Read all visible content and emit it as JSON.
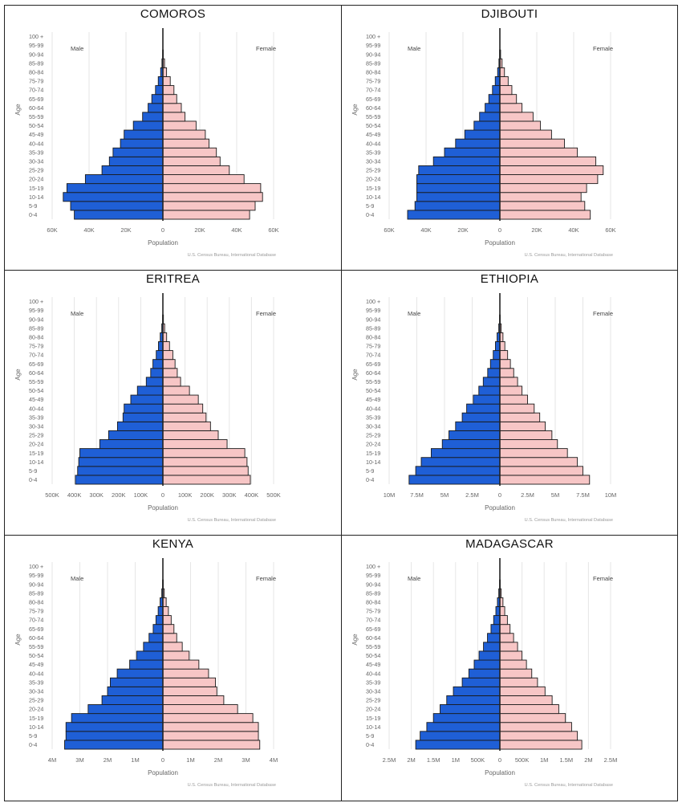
{
  "meta": {
    "age_groups": [
      "0-4",
      "5-9",
      "10-14",
      "15-19",
      "20-24",
      "25-29",
      "30-34",
      "35-39",
      "40-44",
      "45-49",
      "50-54",
      "55-59",
      "60-64",
      "65-69",
      "70-74",
      "75-79",
      "80-84",
      "85-89",
      "90-94",
      "95-99",
      "100 +"
    ],
    "y_axis_label": "Age",
    "x_axis_label": "Population",
    "male_label": "Male",
    "female_label": "Female",
    "source_credit": "U.S. Census Bureau, International Database",
    "colors": {
      "male": "#1f5fd6",
      "female": "#f7c6c6",
      "outline": "#1a1a1a",
      "grid": "#e6e6e6",
      "axis_text": "#666666"
    }
  },
  "chart_data": [
    {
      "type": "bar",
      "title": "COMOROS",
      "xlabel": "Population",
      "ylabel": "Age",
      "xlim": [
        -60000,
        60000
      ],
      "tick_values": [
        -60000,
        -40000,
        -20000,
        0,
        20000,
        40000,
        60000
      ],
      "tick_labels": [
        "60K",
        "40K",
        "20K",
        "0",
        "20K",
        "40K",
        "60K"
      ],
      "categories": [
        "0-4",
        "5-9",
        "10-14",
        "15-19",
        "20-24",
        "25-29",
        "30-34",
        "35-39",
        "40-44",
        "45-49",
        "50-54",
        "55-59",
        "60-64",
        "65-69",
        "70-74",
        "75-79",
        "80-84",
        "85-89",
        "90-94",
        "95-99",
        "100 +"
      ],
      "series": [
        {
          "name": "Male",
          "values": [
            48000,
            50000,
            54000,
            52000,
            42000,
            33000,
            29000,
            27000,
            23000,
            21000,
            16000,
            11000,
            8000,
            6000,
            4000,
            2500,
            1200,
            500,
            150,
            40,
            5
          ]
        },
        {
          "name": "Female",
          "values": [
            47000,
            50000,
            54000,
            53000,
            44000,
            36000,
            31000,
            29000,
            25000,
            23000,
            18000,
            12000,
            10000,
            7500,
            6000,
            4000,
            2000,
            900,
            250,
            60,
            10
          ]
        }
      ]
    },
    {
      "type": "bar",
      "title": "DJIBOUTI",
      "xlabel": "Population",
      "ylabel": "Age",
      "xlim": [
        -60000,
        60000
      ],
      "tick_values": [
        -60000,
        -40000,
        -20000,
        0,
        20000,
        40000,
        60000
      ],
      "tick_labels": [
        "60K",
        "40K",
        "20K",
        "0",
        "20K",
        "40K",
        "60K"
      ],
      "categories": [
        "0-4",
        "5-9",
        "10-14",
        "15-19",
        "20-24",
        "25-29",
        "30-34",
        "35-39",
        "40-44",
        "45-49",
        "50-54",
        "55-59",
        "60-64",
        "65-69",
        "70-74",
        "75-79",
        "80-84",
        "85-89",
        "90-94",
        "95-99",
        "100 +"
      ],
      "series": [
        {
          "name": "Male",
          "values": [
            50000,
            46000,
            45000,
            45000,
            45000,
            44000,
            36000,
            30000,
            24000,
            19000,
            14000,
            11000,
            8000,
            6000,
            4000,
            2500,
            1200,
            500,
            150,
            40,
            5
          ]
        },
        {
          "name": "Female",
          "values": [
            49000,
            46000,
            44000,
            47000,
            53000,
            56000,
            52000,
            42000,
            35000,
            28000,
            22000,
            18000,
            12000,
            9000,
            6500,
            4500,
            2500,
            1200,
            400,
            80,
            10
          ]
        }
      ]
    },
    {
      "type": "bar",
      "title": "ERITREA",
      "xlabel": "Population",
      "ylabel": "Age",
      "xlim": [
        -500000,
        500000
      ],
      "tick_values": [
        -500000,
        -400000,
        -300000,
        -200000,
        -100000,
        0,
        100000,
        200000,
        300000,
        400000,
        500000
      ],
      "tick_labels": [
        "500K",
        "400K",
        "300K",
        "200K",
        "100K",
        "0",
        "100K",
        "200K",
        "300K",
        "400K",
        "500K"
      ],
      "categories": [
        "0-4",
        "5-9",
        "10-14",
        "15-19",
        "20-24",
        "25-29",
        "30-34",
        "35-39",
        "40-44",
        "45-49",
        "50-54",
        "55-59",
        "60-64",
        "65-69",
        "70-74",
        "75-79",
        "80-84",
        "85-89",
        "90-94",
        "95-99",
        "100 +"
      ],
      "series": [
        {
          "name": "Male",
          "values": [
            395000,
            385000,
            380000,
            375000,
            285000,
            245000,
            205000,
            180000,
            175000,
            145000,
            115000,
            75000,
            55000,
            45000,
            30000,
            20000,
            12000,
            5000,
            1500,
            300,
            50
          ]
        },
        {
          "name": "Female",
          "values": [
            395000,
            385000,
            380000,
            370000,
            290000,
            250000,
            215000,
            195000,
            180000,
            160000,
            120000,
            80000,
            65000,
            55000,
            45000,
            30000,
            17000,
            8000,
            2500,
            500,
            80
          ]
        }
      ]
    },
    {
      "type": "bar",
      "title": "ETHIOPIA",
      "xlabel": "Population",
      "ylabel": "Age",
      "xlim": [
        -10000000,
        10000000
      ],
      "tick_values": [
        -10000000,
        -7500000,
        -5000000,
        -2500000,
        0,
        2500000,
        5000000,
        7500000,
        10000000
      ],
      "tick_labels": [
        "10M",
        "7.5M",
        "5M",
        "2.5M",
        "0",
        "2.5M",
        "5M",
        "7.5M",
        "10M"
      ],
      "categories": [
        "0-4",
        "5-9",
        "10-14",
        "15-19",
        "20-24",
        "25-29",
        "30-34",
        "35-39",
        "40-44",
        "45-49",
        "50-54",
        "55-59",
        "60-64",
        "65-69",
        "70-74",
        "75-79",
        "80-84",
        "85-89",
        "90-94",
        "95-99",
        "100 +"
      ],
      "series": [
        {
          "name": "Male",
          "values": [
            8200000,
            7600000,
            7100000,
            6200000,
            5200000,
            4600000,
            4000000,
            3400000,
            3000000,
            2400000,
            1900000,
            1500000,
            1100000,
            850000,
            600000,
            400000,
            250000,
            100000,
            30000,
            6000,
            800
          ]
        },
        {
          "name": "Female",
          "values": [
            8100000,
            7500000,
            7000000,
            6100000,
            5200000,
            4700000,
            4100000,
            3600000,
            3100000,
            2500000,
            2000000,
            1600000,
            1250000,
            950000,
            700000,
            450000,
            280000,
            120000,
            35000,
            7000,
            1000
          ]
        }
      ]
    },
    {
      "type": "bar",
      "title": "KENYA",
      "xlabel": "Population",
      "ylabel": "Age",
      "xlim": [
        -4000000,
        4000000
      ],
      "tick_values": [
        -4000000,
        -3000000,
        -2000000,
        -1000000,
        0,
        1000000,
        2000000,
        3000000,
        4000000
      ],
      "tick_labels": [
        "4M",
        "3M",
        "2M",
        "1M",
        "0",
        "1M",
        "2M",
        "3M",
        "4M"
      ],
      "categories": [
        "0-4",
        "5-9",
        "10-14",
        "15-19",
        "20-24",
        "25-29",
        "30-34",
        "35-39",
        "40-44",
        "45-49",
        "50-54",
        "55-59",
        "60-64",
        "65-69",
        "70-74",
        "75-79",
        "80-84",
        "85-89",
        "90-94",
        "95-99",
        "100 +"
      ],
      "series": [
        {
          "name": "Male",
          "values": [
            3550000,
            3500000,
            3500000,
            3300000,
            2700000,
            2200000,
            2000000,
            1900000,
            1650000,
            1200000,
            950000,
            700000,
            500000,
            350000,
            250000,
            170000,
            100000,
            40000,
            12000,
            3000,
            300
          ]
        },
        {
          "name": "Female",
          "values": [
            3500000,
            3450000,
            3450000,
            3250000,
            2700000,
            2200000,
            1950000,
            1900000,
            1650000,
            1300000,
            950000,
            700000,
            500000,
            400000,
            300000,
            200000,
            120000,
            50000,
            15000,
            3500,
            400
          ]
        }
      ]
    },
    {
      "type": "bar",
      "title": "MADAGASCAR",
      "xlabel": "Population",
      "ylabel": "Age",
      "xlim": [
        -2500000,
        2500000
      ],
      "tick_values": [
        -2500000,
        -2000000,
        -1500000,
        -1000000,
        -500000,
        0,
        500000,
        1000000,
        1500000,
        2000000,
        2500000
      ],
      "tick_labels": [
        "2.5M",
        "2M",
        "1.5M",
        "1M",
        "500K",
        "0",
        "500K",
        "1M",
        "1.5M",
        "2M",
        "2.5M"
      ],
      "categories": [
        "0-4",
        "5-9",
        "10-14",
        "15-19",
        "20-24",
        "25-29",
        "30-34",
        "35-39",
        "40-44",
        "45-49",
        "50-54",
        "55-59",
        "60-64",
        "65-69",
        "70-74",
        "75-79",
        "80-84",
        "85-89",
        "90-94",
        "95-99",
        "100 +"
      ],
      "series": [
        {
          "name": "Male",
          "values": [
            1900000,
            1800000,
            1650000,
            1500000,
            1350000,
            1200000,
            1050000,
            850000,
            700000,
            580000,
            470000,
            370000,
            280000,
            200000,
            140000,
            90000,
            55000,
            25000,
            7000,
            1500,
            200
          ]
        },
        {
          "name": "Female",
          "values": [
            1850000,
            1750000,
            1620000,
            1480000,
            1330000,
            1180000,
            1020000,
            850000,
            720000,
            600000,
            500000,
            400000,
            310000,
            230000,
            170000,
            110000,
            70000,
            30000,
            9000,
            2000,
            300
          ]
        }
      ]
    }
  ]
}
